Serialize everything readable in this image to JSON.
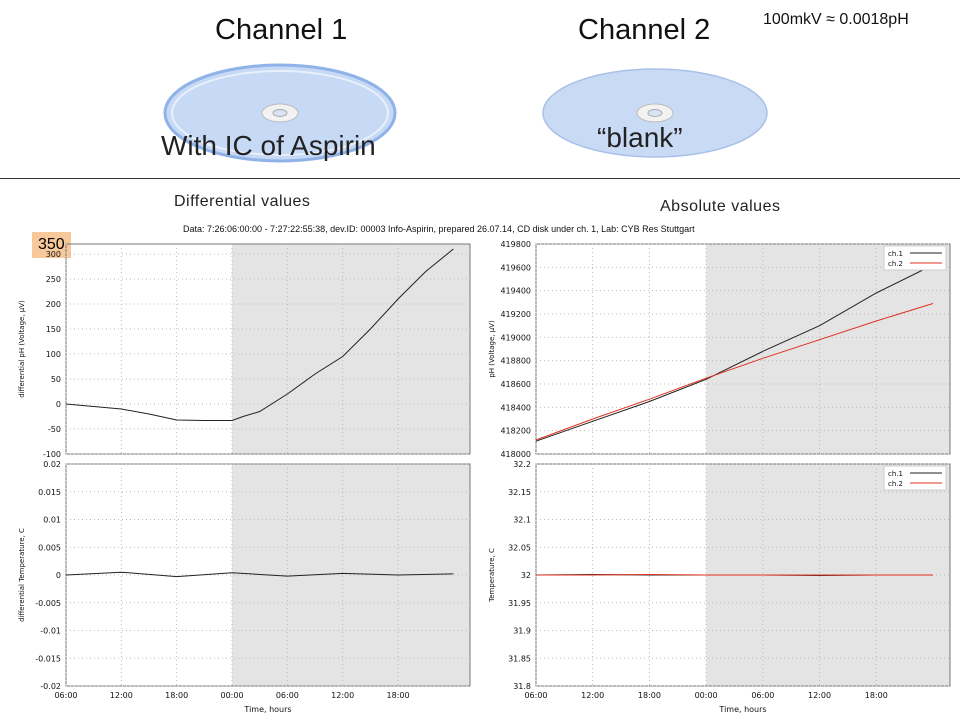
{
  "header": {
    "channel1_title": "Channel 1",
    "channel2_title": "Channel 2",
    "conversion_note": "100mkV ≈ 0.0018pH",
    "disc1_label": "With IC of Aspirin",
    "disc2_label": "“blank”"
  },
  "sections": {
    "differential_label": "Differential values",
    "absolute_label": "Absolute values",
    "badge": "350"
  },
  "figure_title": "Data: 7:26:06:00:00 - 7:27:22:55:38, dev.ID: 00003 Info-Aspirin, prepared 26.07.14, CD disk under ch. 1, Lab: CYB Res Stuttgart",
  "colors": {
    "ch1": "#222222",
    "ch2": "#e03020",
    "shade": "#e4e4e4",
    "disc": "#c9daf5"
  },
  "chart_data": [
    {
      "type": "line",
      "ylabel": "differential pH (Voltage, µV)",
      "xlabel": "",
      "x_ticks": [
        "06:00",
        "12:00",
        "18:00",
        "00:00",
        "06:00",
        "12:00",
        "18:00"
      ],
      "y_ticks": [
        "300",
        "250",
        "200",
        "150",
        "100",
        "50",
        "0",
        "-50",
        "-100"
      ],
      "ylim": [
        -100,
        320
      ],
      "shaded_from": "00:00",
      "series": [
        {
          "x": [
            0,
            0.5,
            1,
            1.5,
            2,
            2.5,
            3,
            3.2,
            3.5,
            4,
            4.5,
            5,
            5.5,
            6,
            6.5,
            7
          ],
          "y": [
            0,
            -5,
            -10,
            -20,
            -32,
            -33,
            -33,
            -25,
            -15,
            20,
            60,
            95,
            150,
            210,
            265,
            310
          ]
        }
      ]
    },
    {
      "type": "line",
      "ylabel": "pH (Voltage, µV)",
      "xlabel": "",
      "x_ticks": [
        "06:00",
        "12:00",
        "18:00",
        "00:00",
        "06:00",
        "12:00",
        "18:00"
      ],
      "y_ticks": [
        "419800",
        "419600",
        "419400",
        "419200",
        "419000",
        "418800",
        "418600",
        "418400",
        "418200",
        "418000"
      ],
      "ylim": [
        418000,
        419800
      ],
      "shaded_from": "00:00",
      "legend": [
        "ch.1",
        "ch.2"
      ],
      "series": [
        {
          "name": "ch.1",
          "x": [
            0,
            1,
            2,
            3,
            4,
            5,
            6,
            7
          ],
          "y": [
            418110,
            418280,
            418450,
            418640,
            418880,
            419100,
            419380,
            419620
          ]
        },
        {
          "name": "ch.2",
          "x": [
            0,
            1,
            2,
            3,
            4,
            5,
            6,
            7
          ],
          "y": [
            418120,
            418300,
            418470,
            418650,
            418820,
            418980,
            419140,
            419290
          ]
        }
      ]
    },
    {
      "type": "line",
      "ylabel": "differential Temperature, C",
      "xlabel": "Time, hours",
      "x_ticks": [
        "06:00",
        "12:00",
        "18:00",
        "00:00",
        "06:00",
        "12:00",
        "18:00"
      ],
      "y_ticks": [
        "0.02",
        "0.015",
        "0.01",
        "0.005",
        "0",
        "-0.005",
        "-0.01",
        "-0.015",
        "-0.02"
      ],
      "ylim": [
        -0.02,
        0.02
      ],
      "shaded_from": "00:00",
      "series": [
        {
          "x": [
            0,
            1,
            2,
            3,
            4,
            5,
            6,
            7
          ],
          "y": [
            0,
            0.0005,
            -0.0003,
            0.0004,
            -0.0002,
            0.0003,
            0,
            0.0002
          ]
        }
      ]
    },
    {
      "type": "line",
      "ylabel": "Temperature, C",
      "xlabel": "Time, hours",
      "x_ticks": [
        "06:00",
        "12:00",
        "18:00",
        "00:00",
        "06:00",
        "12:00",
        "18:00"
      ],
      "y_ticks": [
        "32.2",
        "32.15",
        "32.1",
        "32.05",
        "32",
        "31.95",
        "31.9",
        "31.85",
        "31.8"
      ],
      "ylim": [
        31.8,
        32.2
      ],
      "shaded_from": "00:00",
      "legend": [
        "ch.1",
        "ch.2"
      ],
      "series": [
        {
          "name": "ch.1",
          "x": [
            0,
            1,
            2,
            3,
            4,
            5,
            6,
            7
          ],
          "y": [
            32.0,
            32.001,
            32.0,
            32.0,
            32.0,
            31.999,
            32.0,
            32.0
          ]
        },
        {
          "name": "ch.2",
          "x": [
            0,
            1,
            2,
            3,
            4,
            5,
            6,
            7
          ],
          "y": [
            32.0,
            32.0,
            32.001,
            32.0,
            32.0,
            32.0,
            32.0,
            32.0
          ]
        }
      ]
    }
  ]
}
